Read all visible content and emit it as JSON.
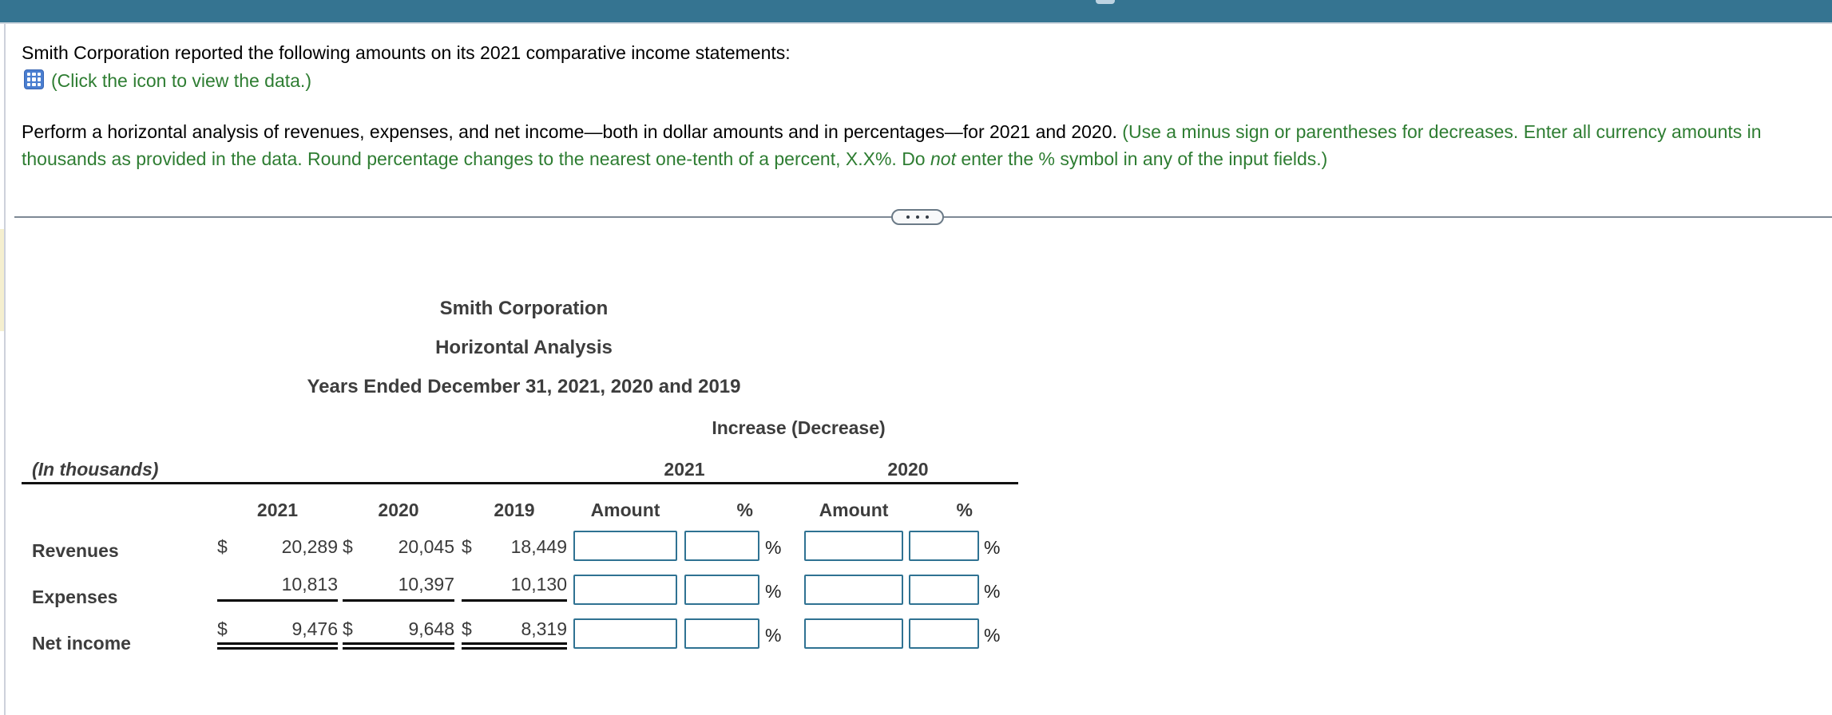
{
  "problem": {
    "intro": "Smith Corporation reported the following amounts on its 2021 comparative income statements:",
    "data_link_label": "(Click the icon to view the data.)",
    "instruction_black": "Perform a horizontal analysis of revenues, expenses, and net income—both in dollar amounts and in percentages—for 2021 and 2020.",
    "instruction_green_1": " (Use a minus sign or parentheses for decreases. Enter all currency amounts in thousands as provided in the data. Round percentage changes to the nearest one-tenth of a percent, X.X%. Do ",
    "instruction_green_italic": "not",
    "instruction_green_2": " enter the % symbol in any of the input fields.)"
  },
  "statement_table": {
    "title_line_1": "Smith Corporation",
    "title_line_2": "Horizontal Analysis",
    "title_line_3": "Years Ended December 31, 2021, 2020 and 2019",
    "increase_decrease_header": "Increase (Decrease)",
    "in_thousands_label": "(In thousands)",
    "group_2021": "2021",
    "group_2020": "2020",
    "col_2021": "2021",
    "col_2020": "2020",
    "col_2019": "2019",
    "col_amount": "Amount",
    "col_percent": "%",
    "percent_suffix": "%",
    "rows": [
      {
        "label": "Revenues",
        "dollar": "$",
        "v2021": "20,289",
        "v2020": "20,045",
        "v2019": "18,449"
      },
      {
        "label": "Expenses",
        "dollar": "",
        "v2021": "10,813",
        "v2020": "10,397",
        "v2019": "10,130"
      },
      {
        "label": "Net income",
        "dollar": "$",
        "v2021": "9,476",
        "v2020": "9,648",
        "v2019": "8,319"
      }
    ]
  },
  "colors": {
    "topbar": "#357491",
    "link_green": "#2e7d32",
    "input_border": "#2f7292"
  }
}
